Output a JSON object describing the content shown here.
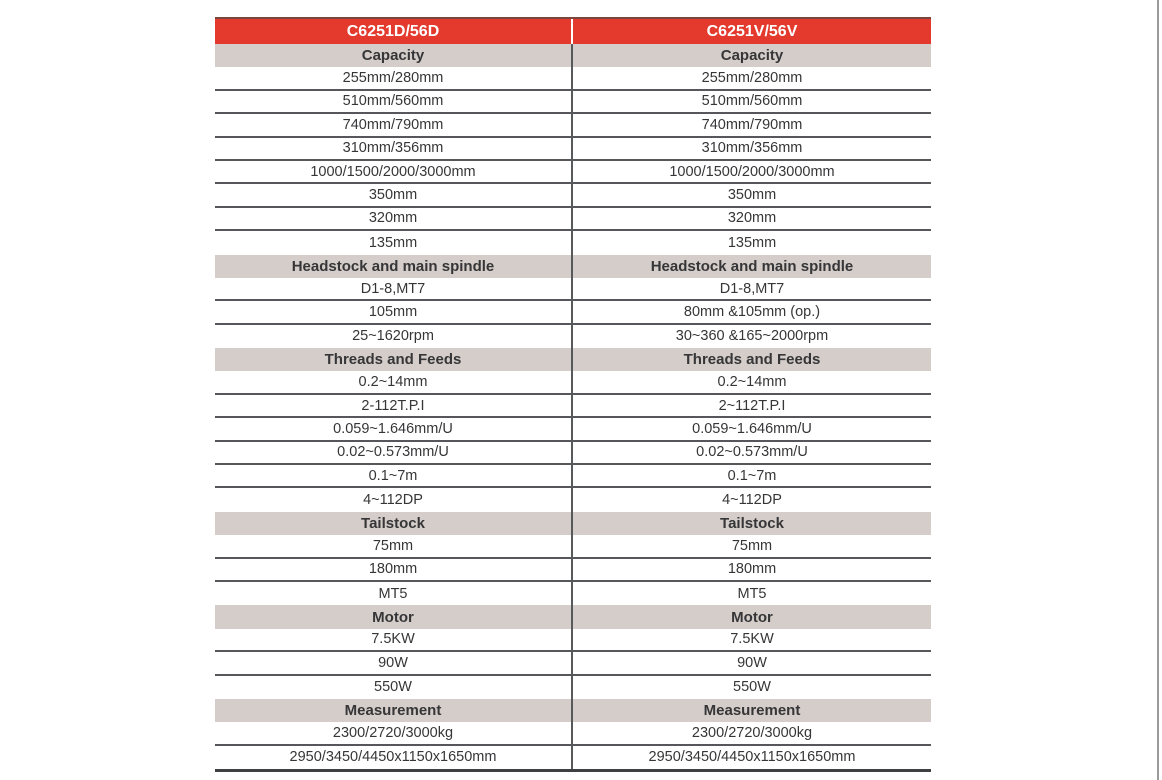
{
  "page": {
    "background": "#ffffff",
    "right_edge_line_color": "#9b9b9b"
  },
  "spec_table": {
    "colors": {
      "header_bg": "#e4392d",
      "header_text": "#ffffff",
      "header_top_edge": "#7c463e",
      "section_bg": "#d4cdc9",
      "row_bg": "#ffffff",
      "divider": "#58595b",
      "row_line": "#56575b",
      "outer_line": "#3f4042",
      "text": "#363638",
      "edge_line": "#9b9b9b"
    },
    "columns": [
      {
        "header": "C6251D/56D"
      },
      {
        "header": "C6251V/56V"
      }
    ],
    "rows": [
      {
        "type": "section",
        "values": [
          "Capacity",
          "Capacity"
        ]
      },
      {
        "type": "data",
        "values": [
          "255mm/280mm",
          "255mm/280mm"
        ]
      },
      {
        "type": "data",
        "values": [
          "510mm/560mm",
          "510mm/560mm"
        ]
      },
      {
        "type": "data",
        "values": [
          "740mm/790mm",
          "740mm/790mm"
        ]
      },
      {
        "type": "data",
        "values": [
          "310mm/356mm",
          "310mm/356mm"
        ]
      },
      {
        "type": "data",
        "values": [
          "1000/1500/2000/3000mm",
          "1000/1500/2000/3000mm"
        ]
      },
      {
        "type": "data",
        "values": [
          "350mm",
          "350mm"
        ]
      },
      {
        "type": "data",
        "values": [
          "320mm",
          "320mm"
        ]
      },
      {
        "type": "data",
        "values": [
          "135mm",
          "135mm"
        ]
      },
      {
        "type": "section",
        "values": [
          "Headstock and main spindle",
          "Headstock and main spindle"
        ]
      },
      {
        "type": "data",
        "values": [
          "D1-8,MT7",
          "D1-8,MT7"
        ]
      },
      {
        "type": "data",
        "values": [
          "105mm",
          "80mm &105mm (op.)"
        ]
      },
      {
        "type": "data",
        "values": [
          "25~1620rpm",
          "30~360 &165~2000rpm"
        ]
      },
      {
        "type": "section",
        "values": [
          "Threads and Feeds",
          "Threads and Feeds"
        ]
      },
      {
        "type": "data",
        "values": [
          "0.2~14mm",
          "0.2~14mm"
        ]
      },
      {
        "type": "data",
        "values": [
          "2-112T.P.I",
          "2~112T.P.I"
        ]
      },
      {
        "type": "data",
        "values": [
          "0.059~1.646mm/U",
          "0.059~1.646mm/U"
        ]
      },
      {
        "type": "data",
        "values": [
          "0.02~0.573mm/U",
          "0.02~0.573mm/U"
        ]
      },
      {
        "type": "data",
        "values": [
          "0.1~7m",
          "0.1~7m"
        ]
      },
      {
        "type": "data",
        "values": [
          "4~112DP",
          "4~112DP"
        ]
      },
      {
        "type": "section",
        "values": [
          "Tailstock",
          "Tailstock"
        ]
      },
      {
        "type": "data",
        "values": [
          "75mm",
          "75mm"
        ]
      },
      {
        "type": "data",
        "values": [
          "180mm",
          "180mm"
        ]
      },
      {
        "type": "data",
        "values": [
          "MT5",
          "MT5"
        ]
      },
      {
        "type": "section",
        "values": [
          "Motor",
          "Motor"
        ]
      },
      {
        "type": "data",
        "values": [
          "7.5KW",
          "7.5KW"
        ]
      },
      {
        "type": "data",
        "values": [
          "90W",
          "90W"
        ]
      },
      {
        "type": "data",
        "values": [
          "550W",
          "550W"
        ]
      },
      {
        "type": "section",
        "values": [
          "Measurement",
          "Measurement"
        ]
      },
      {
        "type": "data",
        "values": [
          "2300/2720/3000kg",
          "2300/2720/3000kg"
        ]
      },
      {
        "type": "data",
        "values": [
          "2950/3450/4450x1150x1650mm",
          "2950/3450/4450x1150x1650mm"
        ]
      }
    ]
  }
}
